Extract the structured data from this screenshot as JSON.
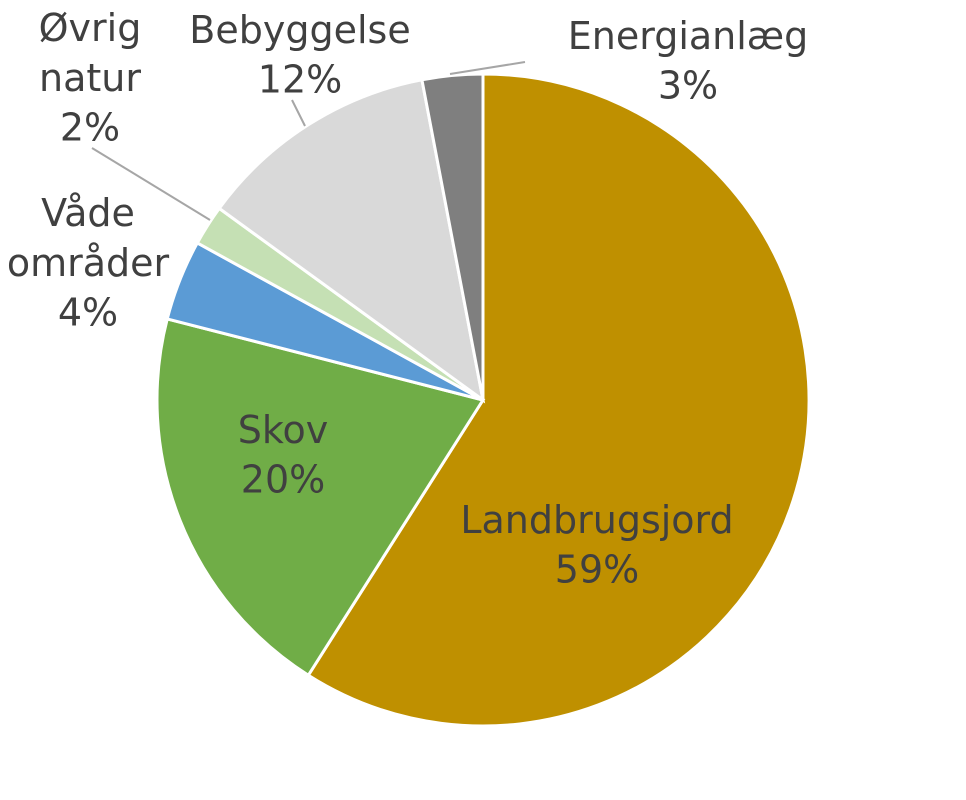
{
  "chart_data": {
    "type": "pie",
    "categories": [
      "Landbrugsjord",
      "Skov",
      "Våde områder",
      "Øvrig natur",
      "Bebyggelse",
      "Energianlæg"
    ],
    "values": [
      59,
      20,
      4,
      2,
      12,
      3
    ],
    "value_labels": [
      "59%",
      "20%",
      "4%",
      "2%",
      "12%",
      "3%"
    ],
    "colors": [
      "#bf9000",
      "#70ad47",
      "#5b9bd5",
      "#c5e0b4",
      "#d9d9d9",
      "#7f7f7f"
    ]
  }
}
